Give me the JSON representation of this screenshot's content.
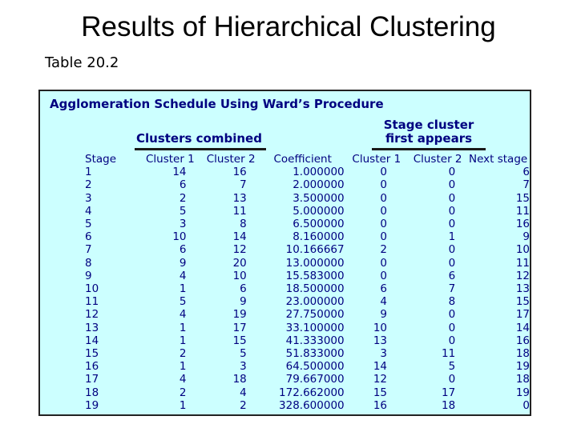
{
  "slide": {
    "title": "Results of Hierarchical Clustering",
    "subtitle": "Table 20.2"
  },
  "table": {
    "heading": "Agglomeration Schedule Using Ward’s Procedure",
    "group_clusters_combined": "Clusters combined",
    "group_stage_first_appears": "Stage cluster\nfirst appears",
    "columns": [
      "Stage",
      "Cluster 1",
      "Cluster 2",
      "Coefficient",
      "Cluster 1",
      "Cluster 2",
      "Next stage"
    ],
    "rows": [
      [
        "1",
        "14",
        "16",
        "1.000000",
        "0",
        "0",
        "6"
      ],
      [
        "2",
        "6",
        "7",
        "2.000000",
        "0",
        "0",
        "7"
      ],
      [
        "3",
        "2",
        "13",
        "3.500000",
        "0",
        "0",
        "15"
      ],
      [
        "4",
        "5",
        "11",
        "5.000000",
        "0",
        "0",
        "11"
      ],
      [
        "5",
        "3",
        "8",
        "6.500000",
        "0",
        "0",
        "16"
      ],
      [
        "6",
        "10",
        "14",
        "8.160000",
        "0",
        "1",
        "9"
      ],
      [
        "7",
        "6",
        "12",
        "10.166667",
        "2",
        "0",
        "10"
      ],
      [
        "8",
        "9",
        "20",
        "13.000000",
        "0",
        "0",
        "11"
      ],
      [
        "9",
        "4",
        "10",
        "15.583000",
        "0",
        "6",
        "12"
      ],
      [
        "10",
        "1",
        "6",
        "18.500000",
        "6",
        "7",
        "13"
      ],
      [
        "11",
        "5",
        "9",
        "23.000000",
        "4",
        "8",
        "15"
      ],
      [
        "12",
        "4",
        "19",
        "27.750000",
        "9",
        "0",
        "17"
      ],
      [
        "13",
        "1",
        "17",
        "33.100000",
        "10",
        "0",
        "14"
      ],
      [
        "14",
        "1",
        "15",
        "41.333000",
        "13",
        "0",
        "16"
      ],
      [
        "15",
        "2",
        "5",
        "51.833000",
        "3",
        "11",
        "18"
      ],
      [
        "16",
        "1",
        "3",
        "64.500000",
        "14",
        "5",
        "19"
      ],
      [
        "17",
        "4",
        "18",
        "79.667000",
        "12",
        "0",
        "18"
      ],
      [
        "18",
        "2",
        "4",
        "172.662000",
        "15",
        "17",
        "19"
      ],
      [
        "19",
        "1",
        "2",
        "328.600000",
        "16",
        "18",
        "0"
      ]
    ]
  }
}
